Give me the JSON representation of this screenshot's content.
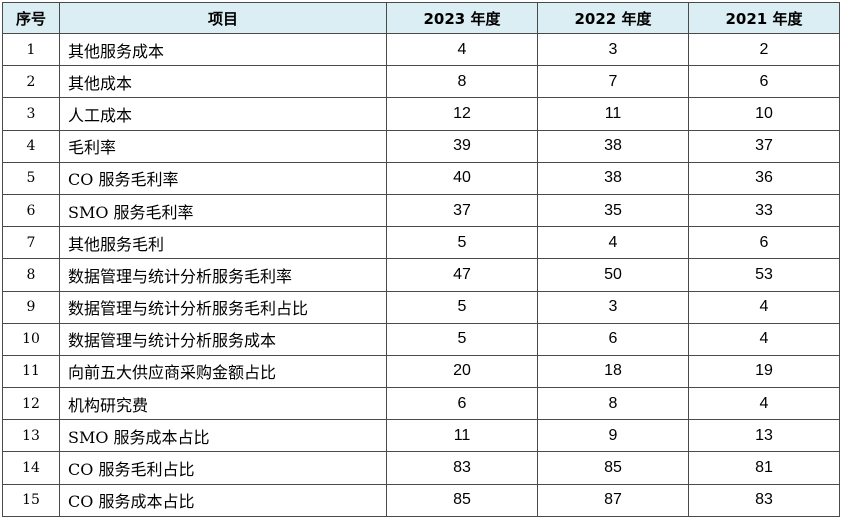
{
  "colors": {
    "header_background": "#daeef3",
    "border": "#4a4a4a",
    "text": "#000000"
  },
  "table": {
    "headers": [
      "序号",
      "项目",
      "2023 年度",
      "2022 年度",
      "2021 年度"
    ],
    "rows": [
      {
        "seq": "1",
        "item": "其他服务成本",
        "y2023": "4",
        "y2022": "3",
        "y2021": "2"
      },
      {
        "seq": "2",
        "item": "其他成本",
        "y2023": "8",
        "y2022": "7",
        "y2021": "6"
      },
      {
        "seq": "3",
        "item": "人工成本",
        "y2023": "12",
        "y2022": "11",
        "y2021": "10"
      },
      {
        "seq": "4",
        "item": "毛利率",
        "y2023": "39",
        "y2022": "38",
        "y2021": "37"
      },
      {
        "seq": "5",
        "item": "CO 服务毛利率",
        "y2023": "40",
        "y2022": "38",
        "y2021": "36"
      },
      {
        "seq": "6",
        "item": "SMO 服务毛利率",
        "y2023": "37",
        "y2022": "35",
        "y2021": "33"
      },
      {
        "seq": "7",
        "item": "其他服务毛利",
        "y2023": "5",
        "y2022": "4",
        "y2021": "6"
      },
      {
        "seq": "8",
        "item": "数据管理与统计分析服务毛利率",
        "y2023": "47",
        "y2022": "50",
        "y2021": "53"
      },
      {
        "seq": "9",
        "item": "数据管理与统计分析服务毛利占比",
        "y2023": "5",
        "y2022": "3",
        "y2021": "4"
      },
      {
        "seq": "10",
        "item": "数据管理与统计分析服务成本",
        "y2023": "5",
        "y2022": "6",
        "y2021": "4"
      },
      {
        "seq": "11",
        "item": "向前五大供应商采购金额占比",
        "y2023": "20",
        "y2022": "18",
        "y2021": "19"
      },
      {
        "seq": "12",
        "item": "机构研究费",
        "y2023": "6",
        "y2022": "8",
        "y2021": "4"
      },
      {
        "seq": "13",
        "item": "SMO 服务成本占比",
        "y2023": "11",
        "y2022": "9",
        "y2021": "13"
      },
      {
        "seq": "14",
        "item": "CO 服务毛利占比",
        "y2023": "83",
        "y2022": "85",
        "y2021": "81"
      },
      {
        "seq": "15",
        "item": "CO 服务成本占比",
        "y2023": "85",
        "y2022": "87",
        "y2021": "83"
      }
    ]
  }
}
